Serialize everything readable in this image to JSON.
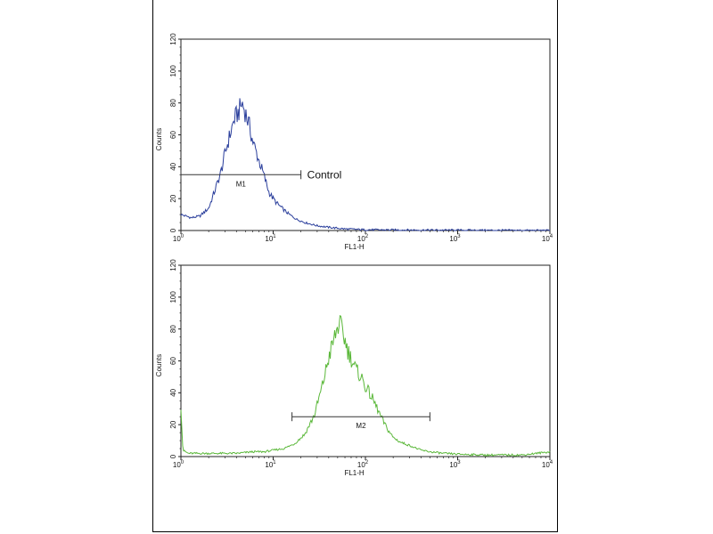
{
  "chart_data": [
    {
      "type": "line",
      "panel": "top",
      "xlabel": "FL1-H",
      "ylabel": "Counts",
      "x_scale": "log",
      "xlim": [
        1,
        10000
      ],
      "ylim": [
        0,
        120
      ],
      "y_ticks": [
        0,
        20,
        40,
        60,
        80,
        100,
        120
      ],
      "x_tick_labels": [
        {
          "base": "10",
          "exp": "0"
        },
        {
          "base": "10",
          "exp": "1"
        },
        {
          "base": "10",
          "exp": "2"
        },
        {
          "base": "10",
          "exp": "3"
        },
        {
          "base": "10",
          "exp": "4"
        }
      ],
      "x_tick_values": [
        1,
        10,
        100,
        1000,
        10000
      ],
      "series": [
        {
          "color": "#2b3f9c",
          "x": [
            1,
            1.3,
            1.6,
            2,
            2.3,
            2.7,
            3,
            3.4,
            3.8,
            4.2,
            4.6,
            5,
            5.5,
            6,
            7,
            8,
            9,
            10,
            11,
            13,
            15,
            18,
            22,
            30,
            40,
            60,
            100,
            300,
            1000,
            10000
          ],
          "y": [
            10,
            8,
            9,
            14,
            24,
            36,
            48,
            60,
            70,
            74,
            80,
            74,
            66,
            56,
            44,
            34,
            24,
            20,
            17,
            13,
            10,
            7,
            5,
            3,
            2,
            1,
            0.5,
            0.3,
            0.2,
            0
          ]
        }
      ],
      "gate": {
        "label": "M1",
        "x_start": 1,
        "x_end": 20,
        "y": 35
      },
      "annotation": "Control"
    },
    {
      "type": "line",
      "panel": "bottom",
      "xlabel": "FL1-H",
      "ylabel": "Counts",
      "x_scale": "log",
      "xlim": [
        1,
        10000
      ],
      "ylim": [
        0,
        120
      ],
      "y_ticks": [
        0,
        20,
        40,
        60,
        80,
        100,
        120
      ],
      "x_tick_labels": [
        {
          "base": "10",
          "exp": "0"
        },
        {
          "base": "10",
          "exp": "1"
        },
        {
          "base": "10",
          "exp": "2"
        },
        {
          "base": "10",
          "exp": "3"
        },
        {
          "base": "10",
          "exp": "4"
        }
      ],
      "x_tick_values": [
        1,
        10,
        100,
        1000,
        10000
      ],
      "series": [
        {
          "color": "#5bb83a",
          "x": [
            1,
            1.05,
            1.2,
            2,
            4,
            6,
            8,
            10,
            13,
            17,
            22,
            28,
            34,
            40,
            46,
            52,
            58,
            65,
            72,
            80,
            90,
            100,
            115,
            130,
            150,
            170,
            200,
            240,
            300,
            400,
            500,
            700,
            1000,
            2000,
            5000,
            10000
          ],
          "y": [
            32,
            4,
            2,
            2,
            2,
            3,
            3,
            4,
            5,
            8,
            14,
            26,
            44,
            62,
            74,
            84,
            76,
            66,
            60,
            54,
            50,
            44,
            38,
            32,
            24,
            18,
            12,
            9,
            7,
            4,
            3,
            2,
            1.5,
            1,
            1,
            3
          ]
        }
      ],
      "gate": {
        "label": "M2",
        "x_start": 16,
        "x_end": 500,
        "y": 25
      }
    }
  ]
}
